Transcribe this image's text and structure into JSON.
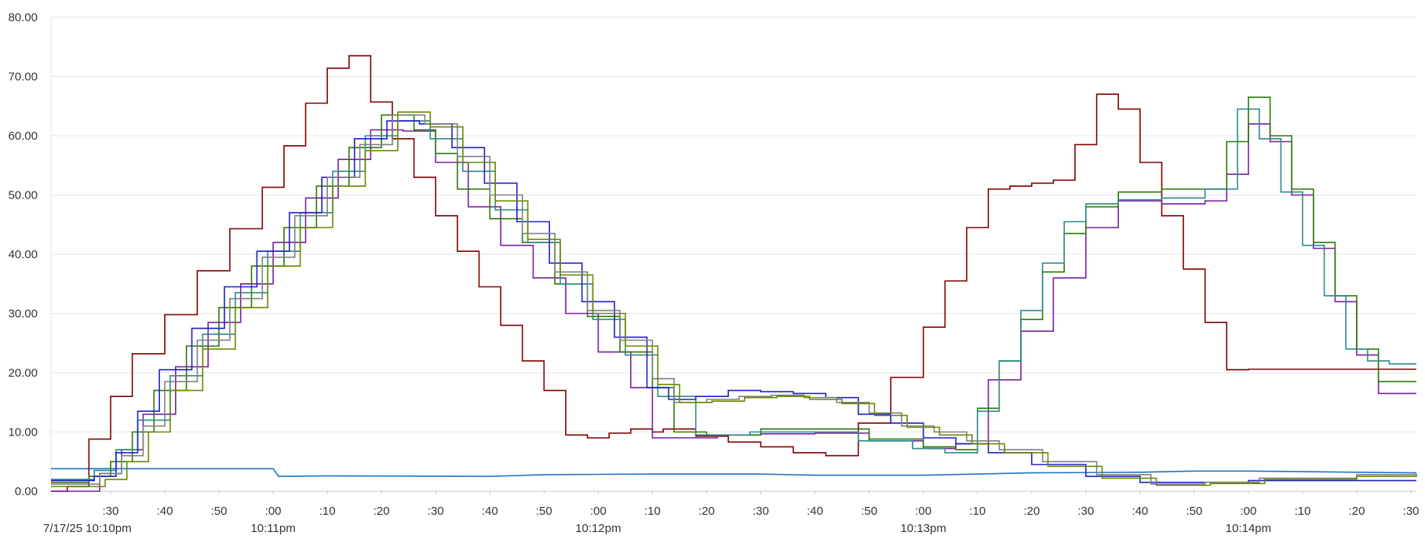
{
  "chart_data": {
    "type": "line",
    "title": "",
    "xlabel": "",
    "ylabel": "",
    "grid": true,
    "legend": "none",
    "ylim": [
      0,
      80
    ],
    "xlim": [
      "10:10:19",
      "10:14:31"
    ],
    "y_ticks": [
      "0.00",
      "10.00",
      "20.00",
      "30.00",
      "40.00",
      "50.00",
      "60.00",
      "70.00",
      "80.00"
    ],
    "x_ticks": [
      {
        "t": "10:10:30",
        "label": ":30"
      },
      {
        "t": "10:10:40",
        "label": ":40"
      },
      {
        "t": "10:10:50",
        "label": ":50"
      },
      {
        "t": "10:11:00",
        "label": ":00"
      },
      {
        "t": "10:11:10",
        "label": ":10"
      },
      {
        "t": "10:11:20",
        "label": ":20"
      },
      {
        "t": "10:11:30",
        "label": ":30"
      },
      {
        "t": "10:11:40",
        "label": ":40"
      },
      {
        "t": "10:11:50",
        "label": ":50"
      },
      {
        "t": "10:12:00",
        "label": ":00"
      },
      {
        "t": "10:12:10",
        "label": ":10"
      },
      {
        "t": "10:12:20",
        "label": ":20"
      },
      {
        "t": "10:12:30",
        "label": ":30"
      },
      {
        "t": "10:12:40",
        "label": ":40"
      },
      {
        "t": "10:12:50",
        "label": ":50"
      },
      {
        "t": "10:13:00",
        "label": ":00"
      },
      {
        "t": "10:13:10",
        "label": ":10"
      },
      {
        "t": "10:13:20",
        "label": ":20"
      },
      {
        "t": "10:13:30",
        "label": ":30"
      },
      {
        "t": "10:13:40",
        "label": ":40"
      },
      {
        "t": "10:13:50",
        "label": ":50"
      },
      {
        "t": "10:14:00",
        "label": ":00"
      },
      {
        "t": "10:14:10",
        "label": ":10"
      },
      {
        "t": "10:14:20",
        "label": ":20"
      },
      {
        "t": "10:14:30",
        "label": ":30"
      }
    ],
    "x_date_labels": [
      {
        "t": "10:10:19",
        "label": "7/17/25 10:10pm"
      },
      {
        "t": "10:11:00",
        "label": "10:11pm"
      },
      {
        "t": "10:12:00",
        "label": "10:12pm"
      },
      {
        "t": "10:13:00",
        "label": "10:13pm"
      },
      {
        "t": "10:14:00",
        "label": "10:14pm"
      }
    ],
    "series": [
      {
        "color": "#1e73c8",
        "step": false,
        "x": [
          "10:10:19",
          "10:10:40",
          "10:11:00",
          "10:11:01",
          "10:11:10",
          "10:11:40",
          "10:11:50",
          "10:12:10",
          "10:12:30",
          "10:12:40",
          "10:12:50",
          "10:13:00",
          "10:13:20",
          "10:13:40",
          "10:13:50",
          "10:14:00",
          "10:14:20",
          "10:14:31"
        ],
        "y": [
          3.8,
          3.8,
          3.8,
          2.5,
          2.6,
          2.5,
          2.8,
          2.9,
          2.9,
          2.7,
          2.7,
          2.7,
          3.1,
          3.2,
          3.4,
          3.4,
          3.2,
          3.1
        ]
      },
      {
        "color": "#800000",
        "step": true,
        "x": [
          "10:10:19",
          "10:10:21",
          "10:10:22",
          "10:10:26",
          "10:10:30",
          "10:10:34",
          "10:10:40",
          "10:10:46",
          "10:10:52",
          "10:10:58",
          "10:11:02",
          "10:11:06",
          "10:11:10",
          "10:11:14",
          "10:11:18",
          "10:11:22",
          "10:11:26",
          "10:11:30",
          "10:11:34",
          "10:11:38",
          "10:11:42",
          "10:11:46",
          "10:11:50",
          "10:11:54",
          "10:11:58",
          "10:12:02",
          "10:12:06",
          "10:12:10",
          "10:12:12",
          "10:12:18",
          "10:12:24",
          "10:12:30",
          "10:12:36",
          "10:12:42",
          "10:12:48",
          "10:12:54",
          "10:13:00",
          "10:13:04",
          "10:13:08",
          "10:13:12",
          "10:13:16",
          "10:13:20",
          "10:13:24",
          "10:13:28",
          "10:13:32",
          "10:13:36",
          "10:13:40",
          "10:13:44",
          "10:13:48",
          "10:13:52",
          "10:13:56",
          "10:14:00",
          "10:14:04",
          "10:14:08",
          "10:14:12",
          "10:14:16",
          "10:14:20",
          "10:14:24",
          "10:14:28",
          "10:14:31"
        ],
        "y": [
          0.0,
          0.0,
          0.8,
          8.8,
          16.0,
          23.2,
          29.8,
          37.2,
          44.3,
          51.3,
          58.3,
          65.5,
          71.4,
          73.5,
          65.7,
          59.5,
          53.0,
          46.5,
          40.5,
          34.5,
          28.0,
          22.0,
          17.0,
          9.5,
          9.0,
          9.8,
          10.5,
          10.0,
          10.5,
          9.3,
          8.3,
          7.5,
          6.5,
          6.0,
          11.5,
          19.2,
          27.7,
          35.5,
          44.5,
          51.0,
          51.5,
          52.0,
          52.5,
          58.5,
          67.0,
          64.5,
          55.5,
          46.5,
          37.5,
          28.5,
          20.5,
          20.6,
          20.6,
          20.6,
          20.6,
          20.6,
          20.6,
          20.6,
          20.6,
          20.6
        ]
      },
      {
        "color": "#7a1fa0",
        "step": true,
        "x": [
          "10:10:19",
          "10:10:24",
          "10:10:28",
          "10:10:32",
          "10:10:36",
          "10:10:42",
          "10:10:48",
          "10:10:54",
          "10:11:00",
          "10:11:06",
          "10:11:12",
          "10:11:18",
          "10:11:24",
          "10:11:30",
          "10:11:36",
          "10:11:42",
          "10:11:48",
          "10:11:54",
          "10:12:00",
          "10:12:06",
          "10:12:10",
          "10:12:16",
          "10:12:22",
          "10:12:30",
          "10:12:40",
          "10:12:50",
          "10:13:00",
          "10:13:06",
          "10:13:12",
          "10:13:18",
          "10:13:24",
          "10:13:30",
          "10:13:36",
          "10:13:44",
          "10:13:52",
          "10:13:56",
          "10:14:00",
          "10:14:04",
          "10:14:08",
          "10:14:12",
          "10:14:16",
          "10:14:20",
          "10:14:24",
          "10:14:28",
          "10:14:31"
        ],
        "y": [
          0.0,
          0.0,
          3.0,
          7.0,
          13.0,
          21.0,
          28.5,
          35.0,
          42.0,
          49.5,
          56.0,
          61.0,
          60.8,
          55.5,
          48.0,
          41.5,
          36.0,
          30.0,
          23.5,
          17.5,
          9.0,
          9.0,
          9.5,
          9.7,
          9.8,
          8.5,
          7.2,
          8.0,
          18.8,
          27.0,
          36.0,
          44.5,
          49.0,
          48.5,
          49.0,
          53.5,
          62.0,
          59.0,
          50.0,
          41.0,
          32.0,
          23.0,
          16.5,
          16.5,
          16.5
        ]
      },
      {
        "color": "#2a7a00",
        "step": true,
        "x": [
          "10:10:19",
          "10:10:22",
          "10:10:26",
          "10:10:30",
          "10:10:34",
          "10:10:38",
          "10:10:44",
          "10:10:50",
          "10:10:56",
          "10:11:02",
          "10:11:08",
          "10:11:14",
          "10:11:20",
          "10:11:26",
          "10:11:30",
          "10:11:34",
          "10:11:40",
          "10:11:46",
          "10:11:52",
          "10:11:58",
          "10:12:04",
          "10:12:10",
          "10:12:14",
          "10:12:20",
          "10:12:30",
          "10:12:40",
          "10:12:50",
          "10:13:00",
          "10:13:06",
          "10:13:10",
          "10:13:14",
          "10:13:18",
          "10:13:22",
          "10:13:26",
          "10:13:30",
          "10:13:36",
          "10:13:44",
          "10:13:52",
          "10:13:56",
          "10:14:00",
          "10:14:04",
          "10:14:08",
          "10:14:12",
          "10:14:16",
          "10:14:20",
          "10:14:24",
          "10:14:28",
          "10:14:31"
        ],
        "y": [
          1.5,
          1.5,
          2.5,
          5.0,
          10.0,
          17.0,
          24.5,
          31.0,
          38.0,
          44.5,
          51.5,
          58.0,
          63.5,
          61.0,
          57.0,
          51.0,
          46.0,
          42.0,
          35.0,
          29.5,
          23.5,
          17.5,
          10.0,
          9.5,
          10.5,
          10.5,
          8.8,
          7.5,
          7.0,
          14.0,
          22.0,
          29.0,
          37.0,
          43.5,
          48.0,
          50.5,
          51.0,
          51.0,
          59.0,
          66.5,
          60.0,
          51.0,
          42.0,
          33.0,
          24.0,
          18.5,
          18.5,
          18.5
        ]
      },
      {
        "color": "#2c8a8a",
        "step": true,
        "x": [
          "10:10:19",
          "10:10:23",
          "10:10:27",
          "10:10:31",
          "10:10:35",
          "10:10:41",
          "10:10:47",
          "10:10:53",
          "10:10:59",
          "10:11:05",
          "10:11:11",
          "10:11:17",
          "10:11:23",
          "10:11:29",
          "10:11:35",
          "10:11:41",
          "10:11:47",
          "10:11:53",
          "10:11:59",
          "10:12:05",
          "10:12:11",
          "10:12:18",
          "10:12:28",
          "10:12:38",
          "10:12:48",
          "10:12:58",
          "10:13:04",
          "10:13:10",
          "10:13:14",
          "10:13:18",
          "10:13:22",
          "10:13:26",
          "10:13:30",
          "10:13:36",
          "10:13:44",
          "10:13:52",
          "10:13:58",
          "10:14:02",
          "10:14:06",
          "10:14:10",
          "10:14:14",
          "10:14:18",
          "10:14:22",
          "10:14:26",
          "10:14:31"
        ],
        "y": [
          2.0,
          2.0,
          3.5,
          7.0,
          12.0,
          19.5,
          26.5,
          33.5,
          40.5,
          47.0,
          54.0,
          60.0,
          62.5,
          59.5,
          54.0,
          47.5,
          42.0,
          35.0,
          29.0,
          23.0,
          16.0,
          9.5,
          10.0,
          10.0,
          8.5,
          7.2,
          6.5,
          13.5,
          22.0,
          30.5,
          38.5,
          45.5,
          48.5,
          49.2,
          49.5,
          51.0,
          64.5,
          59.5,
          50.5,
          41.5,
          33.0,
          24.0,
          22.0,
          21.5,
          21.5
        ]
      },
      {
        "color": "#2020c8",
        "step": true,
        "x": [
          "10:10:19",
          "10:10:23",
          "10:10:27",
          "10:10:31",
          "10:10:35",
          "10:10:39",
          "10:10:45",
          "10:10:51",
          "10:10:57",
          "10:11:03",
          "10:11:09",
          "10:11:15",
          "10:11:21",
          "10:11:27",
          "10:11:33",
          "10:11:39",
          "10:11:45",
          "10:11:51",
          "10:11:57",
          "10:12:03",
          "10:12:09",
          "10:12:13",
          "10:12:18",
          "10:12:24",
          "10:12:30",
          "10:12:36",
          "10:12:42",
          "10:12:48",
          "10:12:54",
          "10:13:00",
          "10:13:06",
          "10:13:12",
          "10:13:20",
          "10:13:30",
          "10:13:40",
          "10:13:50",
          "10:14:00",
          "10:14:20",
          "10:14:31"
        ],
        "y": [
          1.8,
          1.8,
          2.5,
          6.5,
          13.5,
          20.5,
          27.5,
          34.5,
          40.5,
          47.0,
          53.0,
          59.5,
          62.5,
          62.0,
          58.0,
          52.0,
          45.5,
          38.5,
          32.0,
          26.0,
          17.5,
          15.5,
          16.0,
          17.0,
          16.8,
          16.5,
          15.8,
          13.0,
          11.5,
          9.0,
          8.0,
          6.5,
          4.5,
          2.5,
          1.5,
          1.5,
          1.8,
          1.8,
          1.8
        ]
      },
      {
        "color": "#808080",
        "step": true,
        "x": [
          "10:10:19",
          "10:10:24",
          "10:10:28",
          "10:10:32",
          "10:10:36",
          "10:10:40",
          "10:10:46",
          "10:10:52",
          "10:10:58",
          "10:11:04",
          "10:11:10",
          "10:11:16",
          "10:11:22",
          "10:11:28",
          "10:11:34",
          "10:11:40",
          "10:11:46",
          "10:11:52",
          "10:11:58",
          "10:12:04",
          "10:12:10",
          "10:12:14",
          "10:12:20",
          "10:12:26",
          "10:12:32",
          "10:12:38",
          "10:12:44",
          "10:12:50",
          "10:12:56",
          "10:13:02",
          "10:13:08",
          "10:13:14",
          "10:13:22",
          "10:13:32",
          "10:13:42",
          "10:13:52",
          "10:14:02",
          "10:14:20",
          "10:14:31"
        ],
        "y": [
          1.2,
          1.2,
          3.0,
          6.0,
          11.0,
          18.5,
          25.5,
          32.5,
          39.5,
          46.5,
          53.0,
          58.5,
          63.5,
          62.0,
          56.5,
          50.0,
          43.5,
          37.0,
          30.5,
          25.5,
          19.0,
          15.0,
          15.5,
          16.0,
          16.2,
          15.8,
          15.0,
          13.2,
          11.0,
          10.0,
          8.5,
          7.0,
          5.0,
          2.8,
          1.2,
          1.5,
          2.2,
          2.8,
          3.0
        ]
      },
      {
        "color": "#6a8a00",
        "step": true,
        "x": [
          "10:10:19",
          "10:10:25",
          "10:10:29",
          "10:10:33",
          "10:10:37",
          "10:10:41",
          "10:10:47",
          "10:10:53",
          "10:10:59",
          "10:11:05",
          "10:11:11",
          "10:11:17",
          "10:11:23",
          "10:11:29",
          "10:11:35",
          "10:11:41",
          "10:11:47",
          "10:11:53",
          "10:11:59",
          "10:12:05",
          "10:12:11",
          "10:12:15",
          "10:12:21",
          "10:12:27",
          "10:12:33",
          "10:12:39",
          "10:12:45",
          "10:12:51",
          "10:12:57",
          "10:13:03",
          "10:13:09",
          "10:13:15",
          "10:13:23",
          "10:13:33",
          "10:13:43",
          "10:13:53",
          "10:14:03",
          "10:14:20",
          "10:14:31"
        ],
        "y": [
          0.8,
          0.8,
          2.0,
          5.0,
          10.0,
          17.0,
          24.0,
          31.0,
          38.0,
          44.5,
          51.5,
          57.5,
          64.0,
          61.5,
          55.5,
          49.0,
          42.5,
          36.5,
          30.0,
          24.5,
          18.0,
          15.0,
          15.2,
          15.8,
          16.0,
          15.5,
          14.8,
          12.8,
          10.8,
          9.5,
          8.0,
          6.5,
          4.2,
          2.2,
          1.0,
          1.3,
          2.0,
          2.5,
          2.8
        ]
      }
    ]
  }
}
